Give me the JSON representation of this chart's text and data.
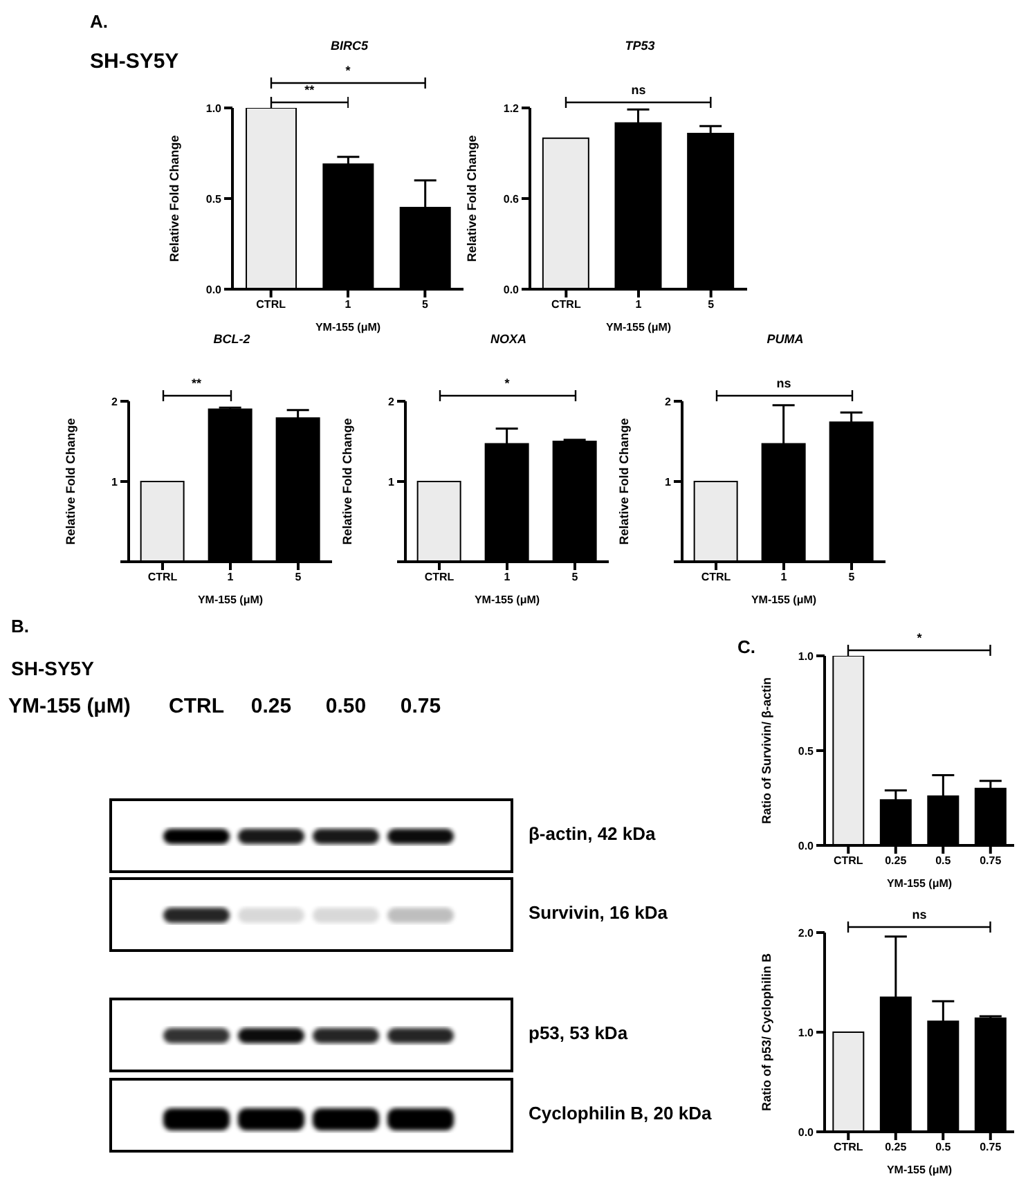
{
  "chart_data": [
    {
      "type": "bar",
      "title": "BIRC5",
      "ylabel": "Relative Fold Change",
      "xlabel": "YM-155 (μM)",
      "categories": [
        "CTRL",
        "1",
        "5"
      ],
      "values": [
        1.0,
        0.69,
        0.45
      ],
      "errors": [
        null,
        0.04,
        0.15
      ],
      "colors": [
        "#ebebeb",
        "#000000",
        "#000000"
      ],
      "ylim": [
        0,
        1
      ],
      "yticks": [
        {
          "value": 0,
          "label": "0.0"
        },
        {
          "value": 0.5,
          "label": "0.5"
        },
        {
          "value": 1,
          "label": "1.0"
        }
      ],
      "annotations": [
        "A.",
        "SH-SY5Y",
        "**",
        "*"
      ]
    },
    {
      "type": "bar",
      "title": "TP53",
      "ylabel": "Relative Fold Change",
      "xlabel": "YM-155 (μM)",
      "categories": [
        "CTRL",
        "1",
        "5"
      ],
      "values": [
        1.0,
        1.1,
        1.03
      ],
      "errors": [
        null,
        0.09,
        0.05
      ],
      "colors": [
        "#ebebeb",
        "#000000",
        "#000000"
      ],
      "ylim": [
        0,
        1.2
      ],
      "yticks": [
        {
          "value": 0,
          "label": "0.0"
        },
        {
          "value": 0.6,
          "label": "0.6"
        },
        {
          "value": 1.2,
          "label": "1.2"
        }
      ],
      "annotations": [
        "ns"
      ]
    },
    {
      "type": "bar",
      "title": "BCL-2",
      "ylabel": "Relative Fold Change",
      "xlabel": "YM-155 (μM)",
      "categories": [
        "CTRL",
        "1",
        "5"
      ],
      "values": [
        1.0,
        1.9,
        1.79
      ],
      "errors": [
        null,
        0.02,
        0.1
      ],
      "colors": [
        "#ebebeb",
        "#000000",
        "#000000"
      ],
      "ylim": [
        0,
        2
      ],
      "yticks": [
        {
          "value": 0,
          "label": null
        },
        {
          "value": 1,
          "label": "1"
        },
        {
          "value": 2,
          "label": "2"
        }
      ],
      "annotations": [
        "**"
      ]
    },
    {
      "type": "bar",
      "title": "NOXA",
      "ylabel": "Relative Fold Change",
      "xlabel": "YM-155 (μM)",
      "categories": [
        "CTRL",
        "1",
        "5"
      ],
      "values": [
        1.0,
        1.47,
        1.5
      ],
      "errors": [
        null,
        0.19,
        0.02
      ],
      "colors": [
        "#ebebeb",
        "#000000",
        "#000000"
      ],
      "ylim": [
        0,
        2
      ],
      "yticks": [
        {
          "value": 0,
          "label": null
        },
        {
          "value": 1,
          "label": "1"
        },
        {
          "value": 2,
          "label": "2"
        }
      ],
      "annotations": [
        "*"
      ]
    },
    {
      "type": "bar",
      "title": "PUMA",
      "ylabel": "Relative Fold Change",
      "xlabel": "YM-155 (μM)",
      "categories": [
        "CTRL",
        "1",
        "5"
      ],
      "values": [
        1.0,
        1.47,
        1.74
      ],
      "errors": [
        null,
        0.48,
        0.12
      ],
      "colors": [
        "#ebebeb",
        "#000000",
        "#000000"
      ],
      "ylim": [
        0,
        2
      ],
      "yticks": [
        {
          "value": 0,
          "label": null
        },
        {
          "value": 1,
          "label": "1"
        },
        {
          "value": 2,
          "label": "2"
        }
      ],
      "annotations": [
        "ns"
      ]
    },
    {
      "type": "other",
      "title": "B.",
      "subtitle": "SH-SY5Y",
      "xlabel": "YM-155 (μM)",
      "categories": [
        "CTRL",
        "0.25",
        "0.50",
        "0.75"
      ],
      "y_categories": [
        "β-actin, 42 kDa",
        "Survivin, 16 kDa",
        "p53, 53 kDa",
        "Cyclophilin B, 20 kDa"
      ]
    },
    {
      "type": "bar",
      "ylabel": "Ratio of Survivin/ β-actin",
      "xlabel": "YM-155 (μM)",
      "categories": [
        "CTRL",
        "0.25",
        "0.5",
        "0.75"
      ],
      "values": [
        1.0,
        0.24,
        0.26,
        0.3
      ],
      "errors": [
        null,
        0.05,
        0.11,
        0.04
      ],
      "colors": [
        "#ebebeb",
        "#000000",
        "#000000",
        "#000000"
      ],
      "ylim": [
        0,
        1
      ],
      "yticks": [
        {
          "value": 0,
          "label": "0.0"
        },
        {
          "value": 0.5,
          "label": "0.5"
        },
        {
          "value": 1,
          "label": "1.0"
        }
      ],
      "annotations": [
        "C.",
        "*"
      ]
    },
    {
      "type": "bar",
      "ylabel": "Ratio of p53/ Cyclophilin B",
      "xlabel": "YM-155 (μM)",
      "categories": [
        "CTRL",
        "0.25",
        "0.5",
        "0.75"
      ],
      "values": [
        1.0,
        1.35,
        1.11,
        1.14
      ],
      "errors": [
        null,
        0.61,
        0.2,
        0.02
      ],
      "colors": [
        "#ebebeb",
        "#000000",
        "#000000",
        "#000000"
      ],
      "ylim": [
        0,
        2
      ],
      "yticks": [
        {
          "value": 0,
          "label": "0.0"
        },
        {
          "value": 1,
          "label": "1.0"
        },
        {
          "value": 2,
          "label": "2.0"
        }
      ],
      "annotations": [
        "ns"
      ]
    }
  ]
}
